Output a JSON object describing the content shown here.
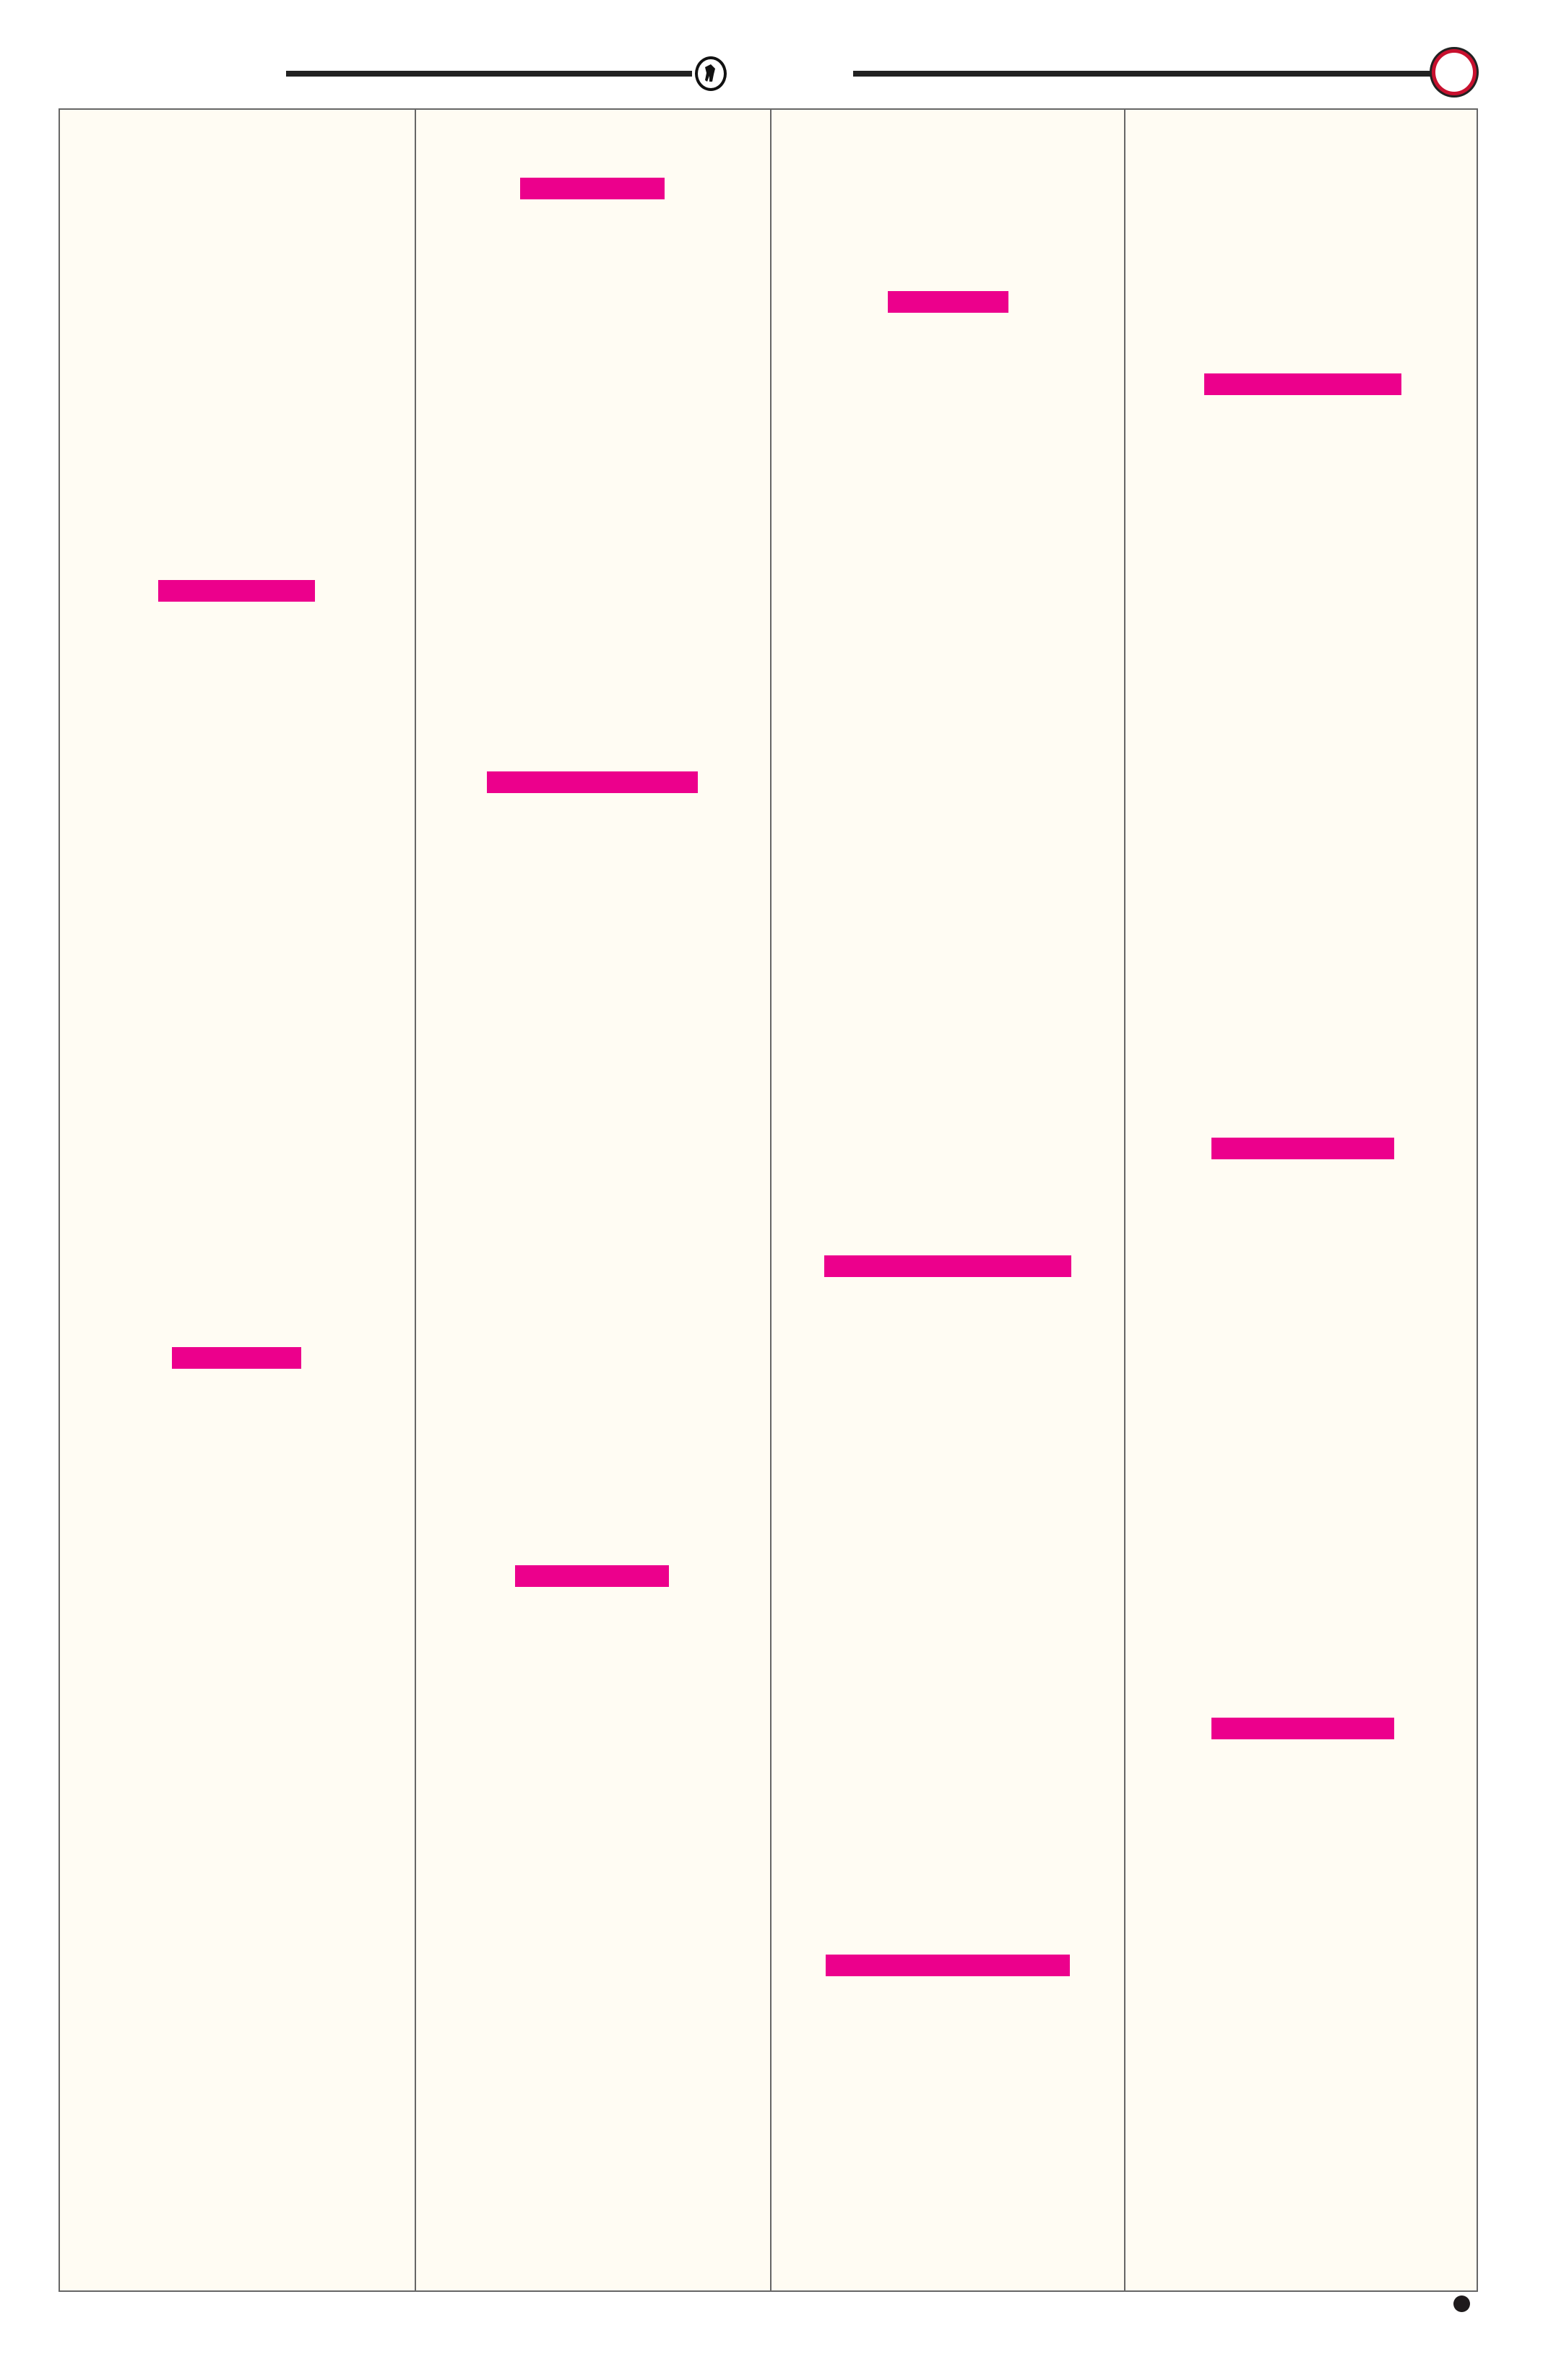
{
  "colors": {
    "page_background": "#fffcf3",
    "highlight": "#ec008c",
    "rule": "#222222",
    "ring": "#c8102e",
    "border": "#666666"
  },
  "header": {
    "emblem_icon": "bull-emblem-icon",
    "ring_icon": "red-ring-icon"
  },
  "footer": {
    "dot_icon": "bullet-dot-icon"
  }
}
